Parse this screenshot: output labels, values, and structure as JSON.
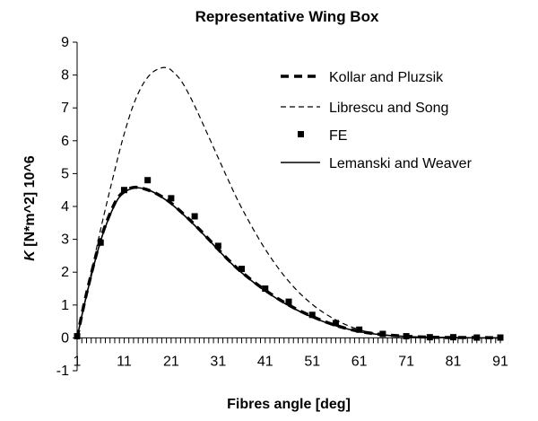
{
  "chart_data": {
    "type": "line",
    "title": "Representative Wing Box",
    "xlabel": "Fibres angle [deg]",
    "ylabel_italic": "K",
    "ylabel_rest": " [N*m^2] 10^6",
    "xlim": [
      1,
      91
    ],
    "ylim": [
      -1,
      9
    ],
    "x_ticks": [
      1,
      11,
      21,
      31,
      41,
      51,
      61,
      71,
      81,
      91
    ],
    "y_ticks": [
      -1,
      0,
      1,
      2,
      3,
      4,
      5,
      6,
      7,
      8,
      9
    ],
    "x_minor_step": 1,
    "grid": false,
    "legend_position": "top-right",
    "series": [
      {
        "name": "Kollar and Pluzsik",
        "style": "thick-dash",
        "color": "#000000",
        "x": [
          1,
          3,
          6,
          9,
          11,
          13,
          15,
          17,
          19,
          21,
          24,
          27,
          30,
          33,
          36,
          41,
          46,
          51,
          56,
          61,
          66,
          71,
          76,
          81,
          86,
          91
        ],
        "y": [
          0,
          1.35,
          3.0,
          4.1,
          4.45,
          4.58,
          4.55,
          4.45,
          4.3,
          4.1,
          3.72,
          3.3,
          2.85,
          2.4,
          2.0,
          1.45,
          1.0,
          0.65,
          0.38,
          0.2,
          0.1,
          0.05,
          0.02,
          0.01,
          0.01,
          0.0
        ]
      },
      {
        "name": "Librescu and Song",
        "style": "thin-dash",
        "color": "#000000",
        "x": [
          1,
          3,
          6,
          9,
          11,
          13,
          15,
          17,
          19,
          20,
          21,
          23,
          25,
          27,
          30,
          33,
          36,
          41,
          46,
          51,
          56,
          61,
          66,
          71,
          76,
          81,
          86,
          91
        ],
        "y": [
          0,
          1.3,
          3.3,
          5.1,
          6.2,
          7.1,
          7.72,
          8.08,
          8.22,
          8.22,
          8.15,
          7.85,
          7.35,
          6.75,
          5.8,
          4.85,
          3.95,
          2.7,
          1.72,
          1.02,
          0.55,
          0.25,
          0.1,
          0.03,
          0.01,
          0.0,
          0.0,
          0.0
        ]
      },
      {
        "name": "FE",
        "style": "square-marker",
        "color": "#000000",
        "x": [
          1,
          6,
          11,
          16,
          21,
          26,
          31,
          36,
          41,
          46,
          51,
          56,
          61,
          66,
          71,
          76,
          81,
          86,
          91
        ],
        "y": [
          0.05,
          2.9,
          4.5,
          4.8,
          4.25,
          3.7,
          2.8,
          2.1,
          1.5,
          1.1,
          0.7,
          0.45,
          0.25,
          0.12,
          0.05,
          0.02,
          0.02,
          0.01,
          0.01
        ]
      },
      {
        "name": "Lemanski and Weaver",
        "style": "solid",
        "color": "#000000",
        "x": [
          1,
          3,
          6,
          9,
          11,
          13,
          15,
          17,
          19,
          21,
          24,
          27,
          30,
          33,
          36,
          41,
          46,
          51,
          56,
          61,
          66,
          71,
          76,
          81,
          86,
          91
        ],
        "y": [
          0,
          1.3,
          2.95,
          4.05,
          4.42,
          4.56,
          4.55,
          4.45,
          4.28,
          4.08,
          3.7,
          3.28,
          2.83,
          2.38,
          1.98,
          1.43,
          0.98,
          0.63,
          0.37,
          0.19,
          0.09,
          0.04,
          0.02,
          0.01,
          0.0,
          0.0
        ]
      }
    ]
  }
}
